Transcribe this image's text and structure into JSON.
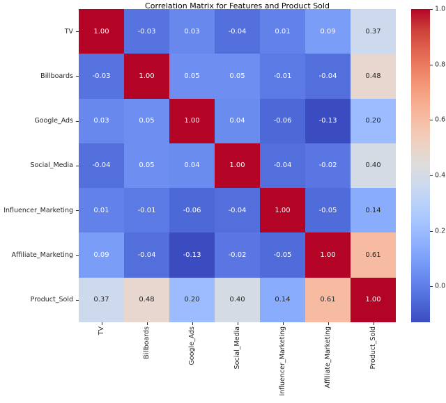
{
  "title": "Correlation Matrix for Features and Product Sold",
  "chart_data": {
    "type": "heatmap",
    "title": "Correlation Matrix for Features and Product Sold",
    "categories": [
      "TV",
      "Billboards",
      "Google_Ads",
      "Social_Media",
      "Influencer_Marketing",
      "Affiliate_Marketing",
      "Product_Sold"
    ],
    "matrix": [
      [
        1.0,
        -0.03,
        0.03,
        -0.04,
        0.01,
        0.09,
        0.37
      ],
      [
        -0.03,
        1.0,
        0.05,
        0.05,
        -0.01,
        -0.04,
        0.48
      ],
      [
        0.03,
        0.05,
        1.0,
        0.04,
        -0.06,
        -0.13,
        0.2
      ],
      [
        -0.04,
        0.05,
        0.04,
        1.0,
        -0.04,
        -0.02,
        0.4
      ],
      [
        0.01,
        -0.01,
        -0.06,
        -0.04,
        1.0,
        -0.05,
        0.14
      ],
      [
        0.09,
        -0.04,
        -0.13,
        -0.02,
        -0.05,
        1.0,
        0.61
      ],
      [
        0.37,
        0.48,
        0.2,
        0.4,
        0.14,
        0.61,
        1.0
      ]
    ],
    "annotation_decimals": 2,
    "colormap": "coolwarm",
    "vmin": -0.13,
    "vmax": 1.0,
    "colorbar": {
      "position": "right",
      "tick_values": [
        1.0,
        0.8,
        0.6,
        0.4,
        0.2,
        0.0
      ],
      "tick_labels": [
        "1.0",
        "0.8",
        "0.6",
        "0.4",
        "0.2",
        "0.0"
      ]
    },
    "grid": false,
    "colors": {
      "max_red": "#b40426",
      "mid_neutral": "#dddddd",
      "min_blue": "#3b4cc0",
      "annotation_dark": "#262626",
      "annotation_light": "#ffffff",
      "background": "#ffffff"
    }
  }
}
